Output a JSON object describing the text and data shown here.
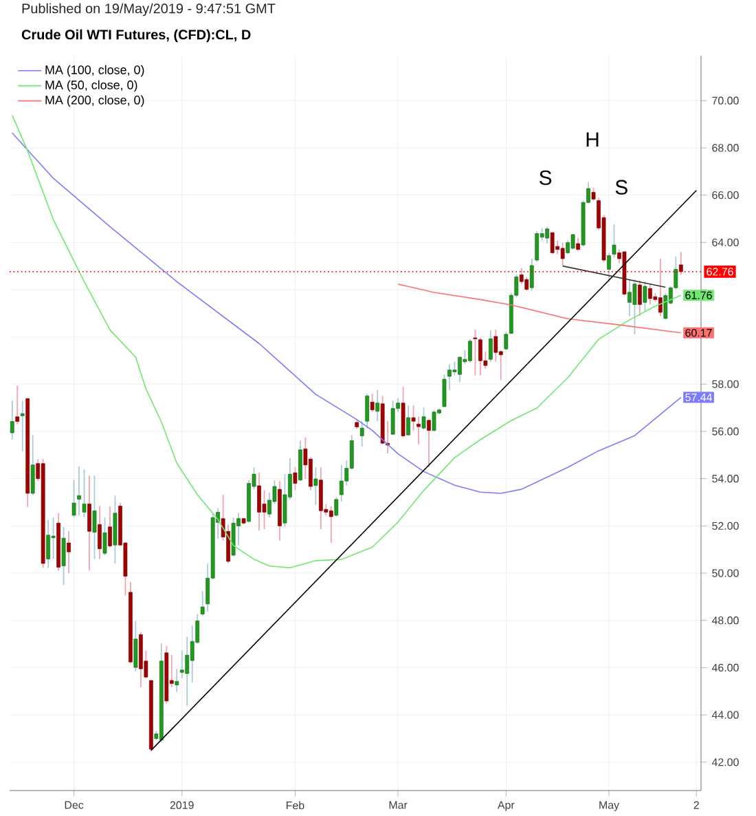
{
  "chart_data": {
    "type": "candlestick",
    "title": "Crude Oil WTI Futures, (CFD):CL, D",
    "subtitle": "Published on 19/May/2019 - 9:47:51 GMT",
    "categories": [
      null,
      null,
      null,
      null,
      null,
      null,
      null,
      null,
      null,
      null,
      null,
      null,
      "Dec",
      null,
      null,
      null,
      null,
      null,
      null,
      null,
      null,
      null,
      null,
      null,
      null,
      null,
      null,
      null,
      null,
      null,
      null,
      null,
      null,
      "2019",
      null,
      null,
      null,
      null,
      null,
      null,
      null,
      null,
      null,
      null,
      null,
      null,
      null,
      null,
      null,
      null,
      null,
      null,
      null,
      null,
      null,
      "Feb",
      null,
      null,
      null,
      null,
      null,
      null,
      null,
      null,
      null,
      null,
      null,
      null,
      null,
      null,
      null,
      null,
      null,
      null,
      null,
      "Mar",
      null,
      null,
      null,
      null,
      null,
      null,
      null,
      null,
      null,
      null,
      null,
      null,
      null,
      null,
      null,
      null,
      null,
      null,
      null,
      null,
      "Apr",
      null,
      null,
      null,
      null,
      null,
      null,
      null,
      null,
      null,
      null,
      null,
      null,
      null,
      null,
      null,
      null,
      null,
      null,
      null,
      "May",
      null,
      null,
      null,
      null,
      null,
      null,
      null,
      null,
      null,
      null,
      null,
      null,
      null,
      null,
      null,
      null,
      "2"
    ],
    "ohlc": [
      [
        55.94,
        57.3,
        55.65,
        56.42
      ],
      [
        56.62,
        57.94,
        56.3,
        56.42
      ],
      [
        56.66,
        57.3,
        55.16,
        56.75
      ],
      [
        57.39,
        57.4,
        52.8,
        53.38
      ],
      [
        53.38,
        55.84,
        53.3,
        54.58
      ],
      [
        54.64,
        54.83,
        53.9,
        54.0
      ],
      [
        54.64,
        54.83,
        50.22,
        50.41
      ],
      [
        50.6,
        52.25,
        50.22,
        51.61
      ],
      [
        51.5,
        52.35,
        50.6,
        51.57
      ],
      [
        52.12,
        52.54,
        50.12,
        50.25
      ],
      [
        50.31,
        51.96,
        49.5,
        51.48
      ],
      [
        51.28,
        51.77,
        50.0,
        50.9
      ],
      [
        52.45,
        53.94,
        52.35,
        52.97
      ],
      [
        53.13,
        54.52,
        52.45,
        53.28
      ],
      [
        52.58,
        54.39,
        52.35,
        52.93
      ],
      [
        52.93,
        54.13,
        50.12,
        51.77
      ],
      [
        51.73,
        54.13,
        50.6,
        52.64
      ],
      [
        52.06,
        52.84,
        50.6,
        51.03
      ],
      [
        50.84,
        52.35,
        50.76,
        51.71
      ],
      [
        51.96,
        52.84,
        51.09,
        51.15
      ],
      [
        51.19,
        53.28,
        50.41,
        52.54
      ],
      [
        52.84,
        52.97,
        51.15,
        51.19
      ],
      [
        51.28,
        51.3,
        49.05,
        49.87
      ],
      [
        49.19,
        49.63,
        46.18,
        46.24
      ],
      [
        46.01,
        47.98,
        45.85,
        47.21
      ],
      [
        47.4,
        47.5,
        45.17,
        45.95
      ],
      [
        46.28,
        46.72,
        45.56,
        45.6
      ],
      [
        45.46,
        45.46,
        42.46,
        42.55
      ],
      [
        43.0,
        43.33,
        42.94,
        43.2
      ],
      [
        42.94,
        47.02,
        42.84,
        46.28
      ],
      [
        46.63,
        46.92,
        44.49,
        44.59
      ],
      [
        45.46,
        46.53,
        45.17,
        45.33
      ],
      [
        45.27,
        45.95,
        44.98,
        45.42
      ],
      [
        45.8,
        46.72,
        45.56,
        45.9
      ],
      [
        45.75,
        47.3,
        44.39,
        46.53
      ],
      [
        46.3,
        47.79,
        45.36,
        47.11
      ],
      [
        47.07,
        48.27,
        47.01,
        47.98
      ],
      [
        48.27,
        49.24,
        48.18,
        48.57
      ],
      [
        48.7,
        50.41,
        48.37,
        49.79
      ],
      [
        49.79,
        52.54,
        49.73,
        52.35
      ],
      [
        52.15,
        52.74,
        51.47,
        52.58
      ],
      [
        52.31,
        53.32,
        51.38,
        51.53
      ],
      [
        51.77,
        52.06,
        50.41,
        50.5
      ],
      [
        50.76,
        52.35,
        50.7,
        52.12
      ],
      [
        52.0,
        52.54,
        51.18,
        52.31
      ],
      [
        52.31,
        52.35,
        52.06,
        52.12
      ],
      [
        52.19,
        53.94,
        52.15,
        53.8
      ],
      [
        53.67,
        54.48,
        53.55,
        54.19
      ],
      [
        53.7,
        54.25,
        51.8,
        52.58
      ],
      [
        52.93,
        53.51,
        51.86,
        52.58
      ],
      [
        52.5,
        53.41,
        52.35,
        53.09
      ],
      [
        53.03,
        53.94,
        52.93,
        53.67
      ],
      [
        53.55,
        53.9,
        51.38,
        52.0
      ],
      [
        52.12,
        54.19,
        51.96,
        53.32
      ],
      [
        53.22,
        54.87,
        53.12,
        54.19
      ],
      [
        54.25,
        54.48,
        53.51,
        53.8
      ],
      [
        53.94,
        55.61,
        53.9,
        55.22
      ],
      [
        55.26,
        55.74,
        53.99,
        54.58
      ],
      [
        54.83,
        54.91,
        53.51,
        53.67
      ],
      [
        53.71,
        54.48,
        52.89,
        53.99
      ],
      [
        53.94,
        54.48,
        51.86,
        52.64
      ],
      [
        52.7,
        52.93,
        52.45,
        52.58
      ],
      [
        52.64,
        52.83,
        51.28,
        52.39
      ],
      [
        52.45,
        53.22,
        52.39,
        53.12
      ],
      [
        53.32,
        54.58,
        53.03,
        53.9
      ],
      [
        53.9,
        54.77,
        53.71,
        54.44
      ],
      [
        54.44,
        55.84,
        54.38,
        55.61
      ],
      [
        56.38,
        56.5,
        56.1,
        56.19
      ],
      [
        55.81,
        56.43,
        55.36,
        56.14
      ],
      [
        56.43,
        57.59,
        56.14,
        57.5
      ],
      [
        57.24,
        57.59,
        56.82,
        56.91
      ],
      [
        56.85,
        57.75,
        56.43,
        57.2
      ],
      [
        57.17,
        57.5,
        55.45,
        55.5
      ],
      [
        55.5,
        56.43,
        55.07,
        55.42
      ],
      [
        55.88,
        57.3,
        55.85,
        56.97
      ],
      [
        56.97,
        57.4,
        56.82,
        57.2
      ],
      [
        57.2,
        57.88,
        55.75,
        55.81
      ],
      [
        55.85,
        57.1,
        55.81,
        56.58
      ],
      [
        56.58,
        57.1,
        56.04,
        56.43
      ],
      [
        56.31,
        56.62,
        55.46,
        56.2
      ],
      [
        56.14,
        57.01,
        56.08,
        56.62
      ],
      [
        56.47,
        56.52,
        54.49,
        56.04
      ],
      [
        56.04,
        56.91,
        56.0,
        56.82
      ],
      [
        56.78,
        56.97,
        56.72,
        56.91
      ],
      [
        57.05,
        58.41,
        57.01,
        58.21
      ],
      [
        58.33,
        58.85,
        57.75,
        58.6
      ],
      [
        58.52,
        58.95,
        58.37,
        58.6
      ],
      [
        58.41,
        59.18,
        58.08,
        59.14
      ],
      [
        58.95,
        59.44,
        58.85,
        59.05
      ],
      [
        58.99,
        59.92,
        58.91,
        59.82
      ],
      [
        59.96,
        60.31,
        58.37,
        59.92
      ],
      [
        59.88,
        59.96,
        58.37,
        58.99
      ],
      [
        58.99,
        59.38,
        58.66,
        58.79
      ],
      [
        59.05,
        60.27,
        58.95,
        59.92
      ],
      [
        60.02,
        60.31,
        58.95,
        59.34
      ],
      [
        59.38,
        59.44,
        58.17,
        59.24
      ],
      [
        59.49,
        60.21,
        59.44,
        60.11
      ],
      [
        60.15,
        61.86,
        60.11,
        61.76
      ],
      [
        61.76,
        62.64,
        61.67,
        62.54
      ],
      [
        62.63,
        62.92,
        62.24,
        62.34
      ],
      [
        62.43,
        62.53,
        61.95,
        62.01
      ],
      [
        62.08,
        63.31,
        61.95,
        63.02
      ],
      [
        63.25,
        64.47,
        63.17,
        64.37
      ],
      [
        64.22,
        64.61,
        64.08,
        64.37
      ],
      [
        64.18,
        64.66,
        63.95,
        64.57
      ],
      [
        64.41,
        64.45,
        63.5,
        63.56
      ],
      [
        63.83,
        64.08,
        63.5,
        63.7
      ],
      [
        63.75,
        63.99,
        63.02,
        63.31
      ],
      [
        63.56,
        64.08,
        63.5,
        63.99
      ],
      [
        63.75,
        64.37,
        63.7,
        64.33
      ],
      [
        63.95,
        64.18,
        63.64,
        63.7
      ],
      [
        63.89,
        65.77,
        63.83,
        65.69
      ],
      [
        65.69,
        66.55,
        65.63,
        66.28
      ],
      [
        66.12,
        66.31,
        65.77,
        65.83
      ],
      [
        65.77,
        65.89,
        64.53,
        64.61
      ],
      [
        65.05,
        65.15,
        63.17,
        63.25
      ],
      [
        62.86,
        63.56,
        62.34,
        63.44
      ],
      [
        63.5,
        64.76,
        63.37,
        63.89
      ],
      [
        63.56,
        63.7,
        63.11,
        63.31
      ],
      [
        63.6,
        63.64,
        61.75,
        61.81
      ],
      [
        61.46,
        62.43,
        60.88,
        61.89
      ],
      [
        61.37,
        62.43,
        60.11,
        62.24
      ],
      [
        62.2,
        62.4,
        60.88,
        61.37
      ],
      [
        61.46,
        62.34,
        61.08,
        62.14
      ],
      [
        62.05,
        62.24,
        61.37,
        61.62
      ],
      [
        61.7,
        61.85,
        61.5,
        61.58
      ],
      [
        61.66,
        63.31,
        60.88,
        61.04
      ],
      [
        60.78,
        61.85,
        60.73,
        61.75
      ],
      [
        61.43,
        62.14,
        61.37,
        62.08
      ],
      [
        62.08,
        63.4,
        62.01,
        62.86
      ],
      [
        63.05,
        63.6,
        62.63,
        62.76
      ],
      null,
      null,
      null
    ],
    "series": [
      {
        "type": "line",
        "name": "MA (100, close, 0)",
        "color": "#7b7bff",
        "values": [
          68.63,
          null,
          null,
          null,
          null,
          null,
          null,
          null,
          66.71,
          null,
          null,
          null,
          null,
          null,
          null,
          null,
          null,
          null,
          null,
          64.67,
          null,
          null,
          null,
          null,
          null,
          null,
          null,
          null,
          null,
          null,
          null,
          null,
          62.34,
          null,
          null,
          null,
          null,
          null,
          null,
          null,
          null,
          null,
          null,
          null,
          null,
          null,
          null,
          null,
          59.72,
          null,
          null,
          null,
          null,
          null,
          null,
          null,
          null,
          null,
          null,
          57.57,
          null,
          null,
          null,
          null,
          null,
          null,
          null,
          56.5,
          null,
          null,
          56.04,
          null,
          null,
          null,
          null,
          55.05,
          null,
          null,
          null,
          null,
          54.3,
          null,
          null,
          null,
          null,
          null,
          53.72,
          null,
          null,
          null,
          null,
          53.43,
          null,
          null,
          null,
          53.38,
          null,
          null,
          null,
          53.55,
          null,
          null,
          null,
          null,
          null,
          null,
          null,
          null,
          54.48,
          null,
          null,
          null,
          null,
          null,
          55.18,
          null,
          null,
          null,
          null,
          null,
          null,
          55.82,
          null,
          null,
          null,
          null,
          null,
          null,
          null,
          null,
          57.44,
          null,
          null,
          null
        ],
        "value_labels": [
          null,
          null,
          null,
          null,
          null,
          null,
          null,
          null,
          null,
          null,
          null,
          null,
          null,
          null,
          null,
          null,
          null,
          null,
          null,
          null,
          null,
          null,
          null,
          null,
          null,
          null,
          null,
          null,
          null,
          null,
          null,
          null,
          null,
          null,
          null,
          null,
          null,
          null,
          null,
          null,
          null,
          null,
          null,
          null,
          null,
          null,
          null,
          null,
          null,
          null,
          null,
          null,
          null,
          null,
          null,
          null,
          null,
          null,
          null,
          null,
          null,
          null,
          null,
          null,
          null,
          null,
          null,
          null,
          null,
          null,
          null,
          null,
          null,
          null,
          null,
          null,
          null,
          null,
          null,
          null,
          null,
          null,
          null,
          null,
          null,
          null,
          null,
          null,
          null,
          null,
          null,
          null,
          null,
          null,
          null,
          null,
          null,
          null,
          null,
          null,
          null,
          null,
          null,
          null,
          null,
          null,
          null,
          null,
          null,
          null,
          null,
          null,
          null,
          null,
          null,
          null,
          null,
          null,
          null,
          null,
          null,
          null,
          null,
          null,
          null,
          null,
          null,
          null,
          null,
          null,
          "57.44",
          null,
          null,
          null
        ]
      },
      {
        "type": "line",
        "name": "MA (50, close, 0)",
        "color": "#6fe86f",
        "values": [
          69.38,
          null,
          null,
          67.87,
          null,
          null,
          null,
          null,
          64.96,
          null,
          null,
          null,
          null,
          null,
          62.34,
          null,
          null,
          null,
          null,
          60.3,
          null,
          null,
          null,
          null,
          59.14,
          null,
          57.8,
          null,
          null,
          56.4,
          null,
          null,
          54.66,
          null,
          null,
          null,
          53.32,
          null,
          null,
          null,
          52.27,
          null,
          null,
          51.17,
          null,
          null,
          null,
          50.59,
          null,
          null,
          50.3,
          null,
          null,
          null,
          50.23,
          null,
          null,
          null,
          null,
          50.53,
          null,
          null,
          null,
          null,
          50.58,
          null,
          null,
          null,
          null,
          null,
          51.1,
          null,
          null,
          null,
          null,
          52.16,
          null,
          null,
          null,
          null,
          53.5,
          null,
          null,
          null,
          null,
          null,
          54.89,
          null,
          null,
          null,
          null,
          55.65,
          null,
          null,
          null,
          null,
          null,
          56.46,
          null,
          null,
          null,
          null,
          56.99,
          null,
          null,
          null,
          null,
          null,
          58.27,
          null,
          null,
          null,
          null,
          null,
          59.9,
          null,
          null,
          null,
          null,
          null,
          60.72,
          null,
          null,
          null,
          null,
          61.3,
          null,
          null,
          null,
          null,
          61.76,
          null,
          null,
          null
        ],
        "value_labels": [
          null,
          null,
          null,
          null,
          null,
          null,
          null,
          null,
          null,
          null,
          null,
          null,
          null,
          null,
          null,
          null,
          null,
          null,
          null,
          null,
          null,
          null,
          null,
          null,
          null,
          null,
          null,
          null,
          null,
          null,
          null,
          null,
          null,
          null,
          null,
          null,
          null,
          null,
          null,
          null,
          null,
          null,
          null,
          null,
          null,
          null,
          null,
          null,
          null,
          null,
          null,
          null,
          null,
          null,
          null,
          null,
          null,
          null,
          null,
          null,
          null,
          null,
          null,
          null,
          null,
          null,
          null,
          null,
          null,
          null,
          null,
          null,
          null,
          null,
          null,
          null,
          null,
          null,
          null,
          null,
          null,
          null,
          null,
          null,
          null,
          null,
          null,
          null,
          null,
          null,
          null,
          null,
          null,
          null,
          null,
          null,
          null,
          null,
          null,
          null,
          null,
          null,
          null,
          null,
          null,
          null,
          null,
          null,
          null,
          null,
          null,
          null,
          null,
          null,
          null,
          null,
          null,
          null,
          null,
          null,
          null,
          null,
          null,
          null,
          null,
          null,
          null,
          null,
          null,
          null,
          "61.76",
          null,
          null,
          null
        ]
      },
      {
        "type": "line",
        "name": "MA (200, close, 0)",
        "color": "#ff7070",
        "values": [
          null,
          null,
          null,
          null,
          null,
          null,
          null,
          null,
          null,
          null,
          null,
          null,
          null,
          null,
          null,
          null,
          null,
          null,
          null,
          null,
          null,
          null,
          null,
          null,
          null,
          null,
          null,
          null,
          null,
          null,
          null,
          null,
          null,
          null,
          null,
          null,
          null,
          null,
          null,
          null,
          null,
          null,
          null,
          null,
          null,
          null,
          null,
          null,
          null,
          null,
          null,
          null,
          null,
          null,
          null,
          null,
          null,
          null,
          null,
          null,
          null,
          null,
          null,
          null,
          null,
          null,
          null,
          null,
          null,
          null,
          null,
          null,
          null,
          null,
          null,
          62.23,
          null,
          null,
          null,
          null,
          null,
          null,
          61.88,
          null,
          null,
          null,
          null,
          null,
          null,
          null,
          null,
          61.58,
          null,
          null,
          null,
          null,
          null,
          61.35,
          null,
          null,
          null,
          null,
          null,
          null,
          null,
          null,
          null,
          null,
          60.77,
          null,
          null,
          null,
          null,
          null,
          null,
          null,
          null,
          null,
          null,
          60.48,
          null,
          null,
          null,
          null,
          null,
          null,
          null,
          null,
          null,
          null,
          60.17,
          null,
          null,
          null
        ],
        "value_labels": [
          null,
          null,
          null,
          null,
          null,
          null,
          null,
          null,
          null,
          null,
          null,
          null,
          null,
          null,
          null,
          null,
          null,
          null,
          null,
          null,
          null,
          null,
          null,
          null,
          null,
          null,
          null,
          null,
          null,
          null,
          null,
          null,
          null,
          null,
          null,
          null,
          null,
          null,
          null,
          null,
          null,
          null,
          null,
          null,
          null,
          null,
          null,
          null,
          null,
          null,
          null,
          null,
          null,
          null,
          null,
          null,
          null,
          null,
          null,
          null,
          null,
          null,
          null,
          null,
          null,
          null,
          null,
          null,
          null,
          null,
          null,
          null,
          null,
          null,
          null,
          null,
          null,
          null,
          null,
          null,
          null,
          null,
          null,
          null,
          null,
          null,
          null,
          null,
          null,
          null,
          null,
          null,
          null,
          null,
          null,
          null,
          null,
          null,
          null,
          null,
          null,
          null,
          null,
          null,
          null,
          null,
          null,
          null,
          null,
          null,
          null,
          null,
          null,
          null,
          null,
          null,
          null,
          null,
          null,
          null,
          null,
          null,
          null,
          null,
          null,
          null,
          null,
          null,
          null,
          null,
          "60.17",
          null,
          null,
          null
        ]
      },
      {
        "type": "line",
        "color": "#000000",
        "values": [
          null,
          null,
          null,
          null,
          null,
          null,
          null,
          null,
          null,
          null,
          null,
          null,
          null,
          null,
          null,
          null,
          null,
          null,
          null,
          null,
          null,
          null,
          null,
          null,
          null,
          null,
          null,
          42.5,
          null,
          null,
          null,
          null,
          null,
          null,
          null,
          null,
          null,
          null,
          null,
          null,
          null,
          null,
          null,
          null,
          null,
          null,
          null,
          null,
          null,
          null,
          null,
          null,
          null,
          null,
          null,
          null,
          null,
          null,
          null,
          null,
          null,
          null,
          null,
          null,
          null,
          null,
          null,
          null,
          null,
          null,
          null,
          null,
          null,
          null,
          null,
          null,
          null,
          null,
          null,
          null,
          null,
          null,
          null,
          null,
          null,
          null,
          null,
          null,
          null,
          null,
          null,
          null,
          null,
          null,
          null,
          null,
          null,
          null,
          null,
          null,
          null,
          null,
          null,
          null,
          null,
          null,
          null,
          null,
          null,
          null,
          null,
          null,
          null,
          null,
          null,
          null,
          null,
          null,
          null,
          null,
          null,
          null,
          null,
          null,
          null,
          null,
          null,
          null,
          null,
          null,
          null,
          null,
          null,
          66.2
        ]
      },
      {
        "type": "line",
        "color": "#333333",
        "values": [
          null,
          null,
          null,
          null,
          null,
          null,
          null,
          null,
          null,
          null,
          null,
          null,
          null,
          null,
          null,
          null,
          null,
          null,
          null,
          null,
          null,
          null,
          null,
          null,
          null,
          null,
          null,
          null,
          null,
          null,
          null,
          null,
          null,
          null,
          null,
          null,
          null,
          null,
          null,
          null,
          null,
          null,
          null,
          null,
          null,
          null,
          null,
          null,
          null,
          null,
          null,
          null,
          null,
          null,
          null,
          null,
          null,
          null,
          null,
          null,
          null,
          null,
          null,
          null,
          null,
          null,
          null,
          null,
          null,
          null,
          null,
          null,
          null,
          null,
          null,
          null,
          null,
          null,
          null,
          null,
          null,
          null,
          null,
          null,
          null,
          null,
          null,
          null,
          null,
          null,
          null,
          null,
          null,
          null,
          null,
          null,
          null,
          null,
          null,
          null,
          null,
          null,
          null,
          null,
          null,
          null,
          null,
          63.0,
          null,
          null,
          null,
          null,
          null,
          null,
          null,
          null,
          null,
          null,
          null,
          null,
          null,
          null,
          null,
          null,
          null,
          null,
          null,
          62.1,
          null,
          null,
          null,
          null,
          null,
          null
        ]
      }
    ],
    "ref_lines": [
      {
        "axis": "y",
        "value": 62.76,
        "label": "62.76",
        "color": "#ff0000",
        "line_style": "dotted"
      }
    ],
    "annotations": [
      "S",
      "H",
      "S"
    ],
    "ylim": [
      40.8,
      71.9
    ],
    "yticks": [
      {
        "value": 42,
        "label": "42.00"
      },
      {
        "value": 44,
        "label": "44.00"
      },
      {
        "value": 46,
        "label": "46.00"
      },
      {
        "value": 48,
        "label": "48.00"
      },
      {
        "value": 50,
        "label": "50.00"
      },
      {
        "value": 52,
        "label": "52.00"
      },
      {
        "value": 54,
        "label": "54.00"
      },
      {
        "value": 56,
        "label": "56.00"
      },
      {
        "value": 58,
        "label": "58.00"
      },
      {
        "value": 60,
        "label": null
      },
      {
        "value": 62,
        "label": null
      },
      {
        "value": 64,
        "label": "64.00"
      },
      {
        "value": 66,
        "label": "66.00"
      },
      {
        "value": 68,
        "label": "68.00"
      },
      {
        "value": 70,
        "label": "70.00"
      }
    ],
    "grid": true,
    "legend": "top left"
  }
}
